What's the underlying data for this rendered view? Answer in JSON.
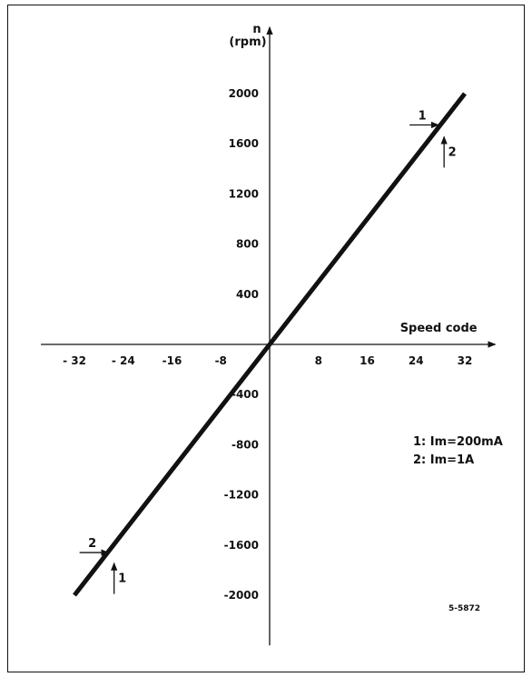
{
  "chart_data": {
    "type": "line",
    "xlabel": "Speed code",
    "ylabel_top": "n",
    "ylabel_unit": "(rpm)",
    "x_ticks": [
      -32,
      -24,
      -16,
      -8,
      8,
      16,
      24,
      32
    ],
    "x_tick_labels": [
      "- 32",
      "- 24",
      "-16",
      "-8",
      "8",
      "16",
      "24",
      "32"
    ],
    "y_ticks": [
      2000,
      1600,
      1200,
      800,
      400,
      -400,
      -800,
      -1200,
      -1600,
      -2000
    ],
    "y_tick_labels": [
      "2000",
      "1600",
      "1200",
      "800",
      "400",
      "-400",
      "-800",
      "-1200",
      "-1600",
      "-2000"
    ],
    "xlim": [
      -37.5,
      37
    ],
    "ylim": [
      -2400,
      2530
    ],
    "series": [
      {
        "name": "1",
        "x": [
          0,
          32
        ],
        "y": [
          0,
          2000
        ]
      },
      {
        "name": "2",
        "x": [
          -32,
          0
        ],
        "y": [
          -2000,
          0
        ]
      }
    ],
    "annotations": [
      {
        "id": "1",
        "text": "1",
        "x": 27.7,
        "y": 1750,
        "arrow": "right",
        "label_side": "above"
      },
      {
        "id": "2",
        "text": "2",
        "x": 28.6,
        "y": 1700,
        "arrow": "up",
        "label_side": "right"
      },
      {
        "id": "2b",
        "text": "2",
        "x": -26.4,
        "y": -1660,
        "arrow": "right",
        "label_side": "above"
      },
      {
        "id": "1b",
        "text": "1",
        "x": -25.5,
        "y": -1700,
        "arrow": "up",
        "label_side": "right"
      }
    ],
    "legend": [
      "1: Im=200mA",
      "2: Im=1A"
    ],
    "legend_position": "right",
    "figure_code": "5-5872",
    "grid": false
  }
}
